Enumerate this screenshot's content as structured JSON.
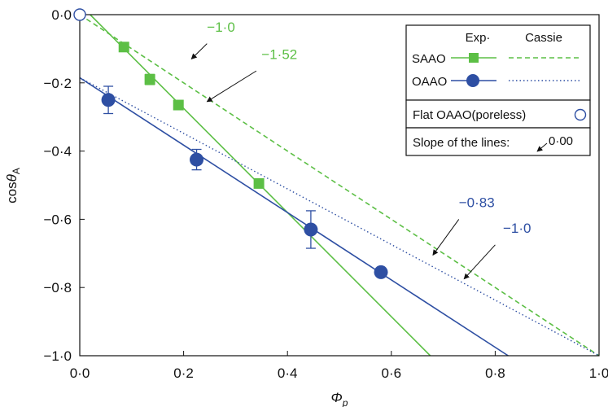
{
  "chart_data": {
    "type": "line",
    "title": "",
    "xlabel": "Φp",
    "ylabel": "cosθA",
    "xlim": [
      0.0,
      1.0
    ],
    "ylim": [
      -1.0,
      0.0
    ],
    "x_ticks": [
      "0·0",
      "0·2",
      "0·4",
      "0·6",
      "0·8",
      "1·0"
    ],
    "y_ticks": [
      "0·0",
      "−0·2",
      "−0·4",
      "−0·6",
      "−0·8",
      "−1·0"
    ],
    "grid": false,
    "colors": {
      "saao": "#5cbf45",
      "oaao": "#2e4fa3",
      "flat": "#2e4fa3"
    },
    "series": [
      {
        "name": "SAAO",
        "kind": "exp",
        "marker": "square",
        "points": [
          {
            "x": 0.085,
            "y": -0.095
          },
          {
            "x": 0.135,
            "y": -0.19,
            "err": 0.015
          },
          {
            "x": 0.19,
            "y": -0.265
          },
          {
            "x": 0.345,
            "y": -0.495
          }
        ],
        "fit": {
          "x1": 0.02,
          "y1": 0.0,
          "x2": 0.675,
          "y2": -1.0
        }
      },
      {
        "name": "OAAO",
        "kind": "exp",
        "marker": "circle",
        "points": [
          {
            "x": 0.055,
            "y": -0.25,
            "err": 0.04
          },
          {
            "x": 0.225,
            "y": -0.425,
            "err": 0.03
          },
          {
            "x": 0.445,
            "y": -0.63,
            "err": 0.055
          },
          {
            "x": 0.58,
            "y": -0.755
          }
        ],
        "fit": {
          "x1": 0.0,
          "y1": -0.185,
          "x2": 0.825,
          "y2": -1.0
        }
      },
      {
        "name": "SAAO Cassie",
        "kind": "cassie",
        "style": "dashed",
        "fit": {
          "x1": 0.0,
          "y1": 0.0,
          "x2": 1.0,
          "y2": -1.0
        }
      },
      {
        "name": "OAAO Cassie",
        "kind": "cassie",
        "style": "dotted",
        "fit": {
          "x1": 0.0,
          "y1": -0.185,
          "x2": 1.0,
          "y2": -1.0
        }
      }
    ],
    "flat_point": {
      "x": 0.0,
      "y": 0.0
    },
    "annotations": [
      {
        "text": "−1·0",
        "color": "saao",
        "label_at": [
          0.245,
          -0.05
        ],
        "arrow_from": [
          0.245,
          -0.085
        ],
        "arrow_to": [
          0.215,
          -0.13
        ]
      },
      {
        "text": "−1·52",
        "color": "saao",
        "label_at": [
          0.35,
          -0.13
        ],
        "arrow_from": [
          0.34,
          -0.165
        ],
        "arrow_to": [
          0.245,
          -0.255
        ]
      },
      {
        "text": "−0·83",
        "color": "oaao",
        "label_at": [
          0.73,
          -0.565
        ],
        "arrow_from": [
          0.73,
          -0.6
        ],
        "arrow_to": [
          0.68,
          -0.705
        ]
      },
      {
        "text": "−1·0",
        "color": "oaao",
        "label_at": [
          0.815,
          -0.64
        ],
        "arrow_from": [
          0.8,
          -0.675
        ],
        "arrow_to": [
          0.74,
          -0.775
        ]
      }
    ],
    "legend": {
      "position": "top-right",
      "header_exp": "Exp·",
      "header_cassie": "Cassie",
      "rows": [
        {
          "label": "SAAO",
          "color": "saao",
          "marker": "square",
          "cassie_style": "dashed"
        },
        {
          "label": "OAAO",
          "color": "oaao",
          "marker": "circle",
          "cassie_style": "dotted"
        }
      ],
      "flat_label": "Flat OAAO(poreless)",
      "slope_label": "Slope of the lines:",
      "slope_value": "0·00"
    }
  }
}
